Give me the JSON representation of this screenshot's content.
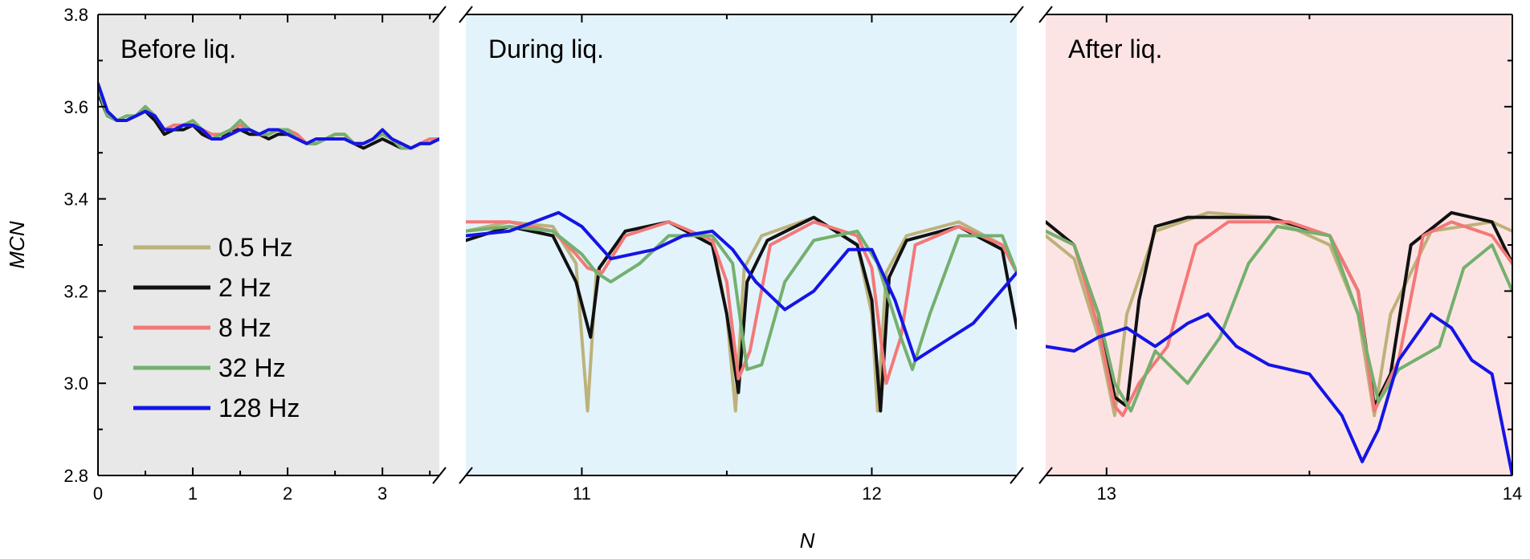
{
  "chart_data": {
    "type": "line",
    "ylabel": "MCN",
    "xlabel": "N",
    "ylim": [
      2.8,
      3.8
    ],
    "yticks": [
      "2.8",
      "3.0",
      "3.2",
      "3.4",
      "3.6",
      "3.8"
    ],
    "legend_position": "left",
    "colors": {
      "before_bg": "#e8e8e8",
      "during_bg": "#e3f3fc",
      "after_bg": "#fde4e4"
    },
    "panels": [
      {
        "title": "Before liq.",
        "xlim": [
          0,
          3.6
        ],
        "xticks": [
          "0",
          "1",
          "2",
          "3"
        ],
        "series": [
          {
            "name": "0.5 Hz",
            "x": [
              0,
              0.1,
              0.2,
              0.3,
              0.4,
              0.5,
              0.6,
              0.7,
              0.8,
              0.9,
              1.0,
              1.1,
              1.2,
              1.3,
              1.4,
              1.5,
              1.6,
              1.7,
              1.8,
              1.9,
              2.0,
              2.1,
              2.2,
              2.3,
              2.4,
              2.5,
              2.6,
              2.7,
              2.8,
              2.9,
              3.0,
              3.1,
              3.2,
              3.3,
              3.4,
              3.5,
              3.6
            ],
            "y": [
              3.64,
              3.58,
              3.57,
              3.57,
              3.58,
              3.59,
              3.58,
              3.55,
              3.55,
              3.56,
              3.56,
              3.55,
              3.53,
              3.54,
              3.55,
              3.56,
              3.55,
              3.54,
              3.54,
              3.55,
              3.54,
              3.54,
              3.52,
              3.52,
              3.53,
              3.54,
              3.54,
              3.52,
              3.52,
              3.53,
              3.54,
              3.53,
              3.51,
              3.51,
              3.52,
              3.53,
              3.53
            ]
          },
          {
            "name": "2 Hz",
            "x": [
              0,
              0.1,
              0.2,
              0.3,
              0.4,
              0.5,
              0.6,
              0.7,
              0.8,
              0.9,
              1.0,
              1.1,
              1.2,
              1.3,
              1.4,
              1.5,
              1.6,
              1.7,
              1.8,
              1.9,
              2.0,
              2.1,
              2.2,
              2.3,
              2.4,
              2.5,
              2.6,
              2.7,
              2.8,
              2.9,
              3.0,
              3.1,
              3.2,
              3.3,
              3.4,
              3.5,
              3.6
            ],
            "y": [
              3.63,
              3.58,
              3.57,
              3.57,
              3.58,
              3.59,
              3.57,
              3.54,
              3.55,
              3.55,
              3.56,
              3.54,
              3.53,
              3.53,
              3.55,
              3.55,
              3.54,
              3.54,
              3.53,
              3.54,
              3.54,
              3.53,
              3.52,
              3.52,
              3.53,
              3.53,
              3.53,
              3.52,
              3.51,
              3.52,
              3.53,
              3.52,
              3.51,
              3.51,
              3.52,
              3.52,
              3.53
            ]
          },
          {
            "name": "8 Hz",
            "x": [
              0,
              0.1,
              0.2,
              0.3,
              0.4,
              0.5,
              0.6,
              0.7,
              0.8,
              0.9,
              1.0,
              1.1,
              1.2,
              1.3,
              1.4,
              1.5,
              1.6,
              1.7,
              1.8,
              1.9,
              2.0,
              2.1,
              2.2,
              2.3,
              2.4,
              2.5,
              2.6,
              2.7,
              2.8,
              2.9,
              3.0,
              3.1,
              3.2,
              3.3,
              3.4,
              3.5,
              3.6
            ],
            "y": [
              3.64,
              3.59,
              3.57,
              3.57,
              3.58,
              3.6,
              3.58,
              3.55,
              3.56,
              3.56,
              3.56,
              3.55,
              3.54,
              3.54,
              3.55,
              3.56,
              3.55,
              3.54,
              3.54,
              3.55,
              3.55,
              3.54,
              3.52,
              3.52,
              3.53,
              3.54,
              3.54,
              3.52,
              3.52,
              3.53,
              3.54,
              3.53,
              3.52,
              3.51,
              3.52,
              3.53,
              3.53
            ]
          },
          {
            "name": "32 Hz",
            "x": [
              0,
              0.1,
              0.2,
              0.3,
              0.4,
              0.5,
              0.6,
              0.7,
              0.8,
              0.9,
              1.0,
              1.1,
              1.2,
              1.3,
              1.4,
              1.5,
              1.6,
              1.7,
              1.8,
              1.9,
              2.0,
              2.1,
              2.2,
              2.3,
              2.4,
              2.5,
              2.6,
              2.7,
              2.8,
              2.9,
              3.0,
              3.1,
              3.2,
              3.3,
              3.4,
              3.5,
              3.6
            ],
            "y": [
              3.64,
              3.58,
              3.57,
              3.58,
              3.58,
              3.6,
              3.58,
              3.55,
              3.55,
              3.56,
              3.57,
              3.55,
              3.53,
              3.54,
              3.55,
              3.57,
              3.55,
              3.54,
              3.54,
              3.55,
              3.55,
              3.53,
              3.52,
              3.52,
              3.53,
              3.54,
              3.54,
              3.52,
              3.52,
              3.53,
              3.54,
              3.53,
              3.51,
              3.51,
              3.52,
              3.52,
              3.53
            ]
          },
          {
            "name": "128 Hz",
            "x": [
              0,
              0.1,
              0.2,
              0.3,
              0.4,
              0.5,
              0.6,
              0.7,
              0.8,
              0.9,
              1.0,
              1.1,
              1.2,
              1.3,
              1.4,
              1.5,
              1.6,
              1.7,
              1.8,
              1.9,
              2.0,
              2.1,
              2.2,
              2.3,
              2.4,
              2.5,
              2.6,
              2.7,
              2.8,
              2.9,
              3.0,
              3.1,
              3.2,
              3.3,
              3.4,
              3.5,
              3.6
            ],
            "y": [
              3.65,
              3.59,
              3.57,
              3.57,
              3.58,
              3.59,
              3.58,
              3.55,
              3.55,
              3.56,
              3.56,
              3.55,
              3.53,
              3.53,
              3.54,
              3.55,
              3.55,
              3.54,
              3.55,
              3.55,
              3.54,
              3.53,
              3.52,
              3.53,
              3.53,
              3.53,
              3.53,
              3.52,
              3.52,
              3.53,
              3.55,
              3.53,
              3.52,
              3.51,
              3.52,
              3.52,
              3.53
            ]
          }
        ]
      },
      {
        "title": "During liq.",
        "xlim": [
          10.6,
          12.5
        ],
        "xticks": [
          "11",
          "12"
        ],
        "series": [
          {
            "name": "0.5 Hz",
            "x": [
              10.6,
              10.75,
              10.9,
              10.98,
              11.02,
              11.05,
              11.15,
              11.3,
              11.45,
              11.5,
              11.53,
              11.56,
              11.62,
              11.8,
              11.95,
              12.0,
              12.02,
              12.05,
              12.12,
              12.3,
              12.45,
              12.5
            ],
            "y": [
              3.33,
              3.35,
              3.34,
              3.26,
              2.94,
              3.24,
              3.33,
              3.35,
              3.31,
              3.15,
              2.94,
              3.25,
              3.32,
              3.36,
              3.3,
              3.15,
              2.94,
              3.24,
              3.32,
              3.35,
              3.3,
              3.24
            ]
          },
          {
            "name": "2 Hz",
            "x": [
              10.6,
              10.75,
              10.9,
              10.98,
              11.03,
              11.06,
              11.15,
              11.3,
              11.45,
              11.5,
              11.54,
              11.57,
              11.64,
              11.8,
              11.95,
              12.0,
              12.03,
              12.06,
              12.12,
              12.3,
              12.45,
              12.5
            ],
            "y": [
              3.31,
              3.34,
              3.32,
              3.22,
              3.1,
              3.25,
              3.33,
              3.35,
              3.3,
              3.15,
              2.98,
              3.22,
              3.31,
              3.36,
              3.3,
              3.18,
              2.94,
              3.23,
              3.31,
              3.34,
              3.29,
              3.12
            ]
          },
          {
            "name": "8 Hz",
            "x": [
              10.6,
              10.75,
              10.9,
              10.98,
              11.02,
              11.07,
              11.15,
              11.3,
              11.45,
              11.5,
              11.54,
              11.58,
              11.65,
              11.8,
              11.95,
              12.0,
              12.05,
              12.1,
              12.15,
              12.3,
              12.45,
              12.5
            ],
            "y": [
              3.35,
              3.35,
              3.33,
              3.28,
              3.25,
              3.24,
              3.32,
              3.35,
              3.31,
              3.22,
              3.01,
              3.07,
              3.3,
              3.35,
              3.32,
              3.25,
              3.0,
              3.1,
              3.3,
              3.34,
              3.3,
              3.24
            ]
          },
          {
            "name": "32 Hz",
            "x": [
              10.6,
              10.75,
              10.9,
              11.0,
              11.05,
              11.1,
              11.2,
              11.3,
              11.45,
              11.52,
              11.57,
              11.62,
              11.7,
              11.8,
              11.95,
              12.02,
              12.1,
              12.14,
              12.2,
              12.3,
              12.45,
              12.5
            ],
            "y": [
              3.33,
              3.34,
              3.33,
              3.28,
              3.24,
              3.22,
              3.26,
              3.32,
              3.32,
              3.26,
              3.03,
              3.04,
              3.22,
              3.31,
              3.33,
              3.26,
              3.1,
              3.03,
              3.15,
              3.32,
              3.32,
              3.24
            ]
          },
          {
            "name": "128 Hz",
            "x": [
              10.6,
              10.75,
              10.92,
              11.0,
              11.1,
              11.25,
              11.35,
              11.45,
              11.52,
              11.6,
              11.7,
              11.8,
              11.92,
              12.0,
              12.08,
              12.15,
              12.25,
              12.35,
              12.5
            ],
            "y": [
              3.32,
              3.33,
              3.37,
              3.34,
              3.27,
              3.29,
              3.32,
              3.33,
              3.29,
              3.22,
              3.16,
              3.2,
              3.29,
              3.29,
              3.18,
              3.05,
              3.09,
              3.13,
              3.24
            ]
          }
        ]
      },
      {
        "title": "After liq.",
        "xlim": [
          12.85,
          14
        ],
        "xticks": [
          "13",
          "14"
        ],
        "series": [
          {
            "name": "0.5 Hz",
            "x": [
              12.85,
              12.92,
              12.98,
              13.02,
              13.05,
              13.12,
              13.25,
              13.4,
              13.55,
              13.62,
              13.66,
              13.7,
              13.8,
              13.95,
              14.0
            ],
            "y": [
              3.32,
              3.27,
              3.1,
              2.93,
              3.15,
              3.33,
              3.37,
              3.36,
              3.3,
              3.15,
              2.93,
              3.15,
              3.33,
              3.35,
              3.33
            ]
          },
          {
            "name": "2 Hz",
            "x": [
              12.85,
              12.92,
              12.98,
              13.02,
              13.05,
              13.08,
              13.12,
              13.2,
              13.4,
              13.55,
              13.62,
              13.66,
              13.7,
              13.75,
              13.85,
              13.95,
              14.0
            ],
            "y": [
              3.35,
              3.3,
              3.15,
              2.97,
              2.95,
              3.18,
              3.34,
              3.36,
              3.36,
              3.32,
              3.2,
              2.95,
              3.02,
              3.3,
              3.37,
              3.35,
              3.26
            ]
          },
          {
            "name": "8 Hz",
            "x": [
              12.85,
              12.92,
              12.98,
              13.02,
              13.04,
              13.08,
              13.15,
              13.22,
              13.3,
              13.45,
              13.55,
              13.62,
              13.66,
              13.72,
              13.78,
              13.85,
              13.95,
              14.0
            ],
            "y": [
              3.33,
              3.3,
              3.12,
              2.95,
              2.93,
              3.0,
              3.08,
              3.3,
              3.35,
              3.35,
              3.32,
              3.2,
              2.94,
              3.05,
              3.32,
              3.35,
              3.32,
              3.26
            ]
          },
          {
            "name": "32 Hz",
            "x": [
              12.85,
              12.92,
              12.98,
              13.02,
              13.06,
              13.12,
              13.2,
              13.28,
              13.35,
              13.42,
              13.55,
              13.62,
              13.67,
              13.72,
              13.78,
              13.82,
              13.88,
              13.95,
              14.0
            ],
            "y": [
              3.33,
              3.3,
              3.15,
              3.0,
              2.94,
              3.07,
              3.0,
              3.1,
              3.26,
              3.34,
              3.32,
              3.15,
              2.96,
              3.03,
              3.06,
              3.08,
              3.25,
              3.3,
              3.2
            ]
          },
          {
            "name": "128 Hz",
            "x": [
              12.85,
              12.92,
              12.98,
              13.05,
              13.12,
              13.2,
              13.25,
              13.32,
              13.4,
              13.5,
              13.58,
              13.63,
              13.67,
              13.72,
              13.8,
              13.85,
              13.9,
              13.95,
              14.0
            ],
            "y": [
              3.08,
              3.07,
              3.1,
              3.12,
              3.08,
              3.13,
              3.15,
              3.08,
              3.04,
              3.02,
              2.93,
              2.83,
              2.9,
              3.05,
              3.15,
              3.12,
              3.05,
              3.02,
              2.8
            ]
          }
        ]
      }
    ]
  }
}
